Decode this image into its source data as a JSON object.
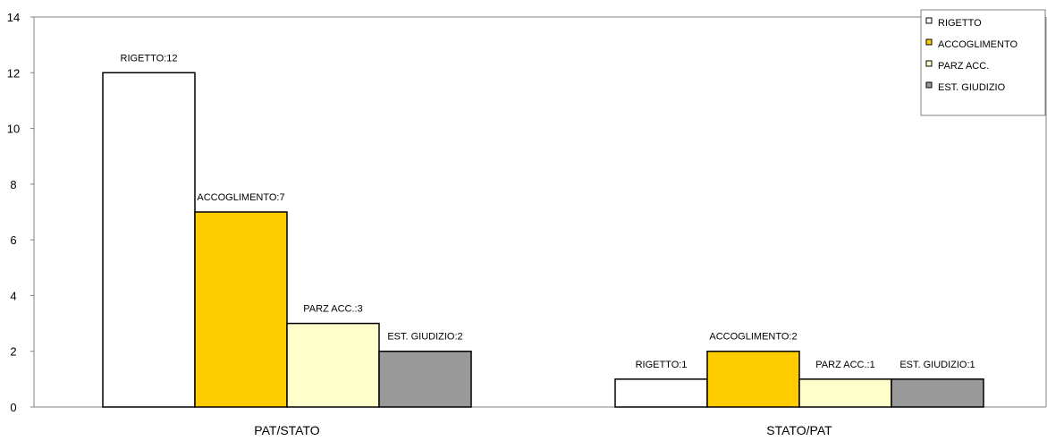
{
  "chart_data": {
    "type": "bar",
    "categories": [
      "PAT/STATO",
      "STATO/PAT"
    ],
    "series": [
      {
        "name": "RIGETTO",
        "values": [
          12,
          1
        ],
        "color": "#ffffff",
        "labels": [
          "RIGETTO:12",
          "RIGETTO:1"
        ]
      },
      {
        "name": "ACCOGLIMENTO",
        "values": [
          7,
          2
        ],
        "color": "#ffcc00",
        "labels": [
          "ACCOGLIMENTO:7",
          "ACCOGLIMENTO:2"
        ]
      },
      {
        "name": "PARZ ACC.",
        "values": [
          3,
          1
        ],
        "color": "#ffffcc",
        "labels": [
          "PARZ ACC.:3",
          "PARZ ACC.:1"
        ]
      },
      {
        "name": "EST. GIUDIZIO",
        "values": [
          2,
          1
        ],
        "color": "#999999",
        "labels": [
          "EST. GIUDIZIO:2",
          "EST. GIUDIZIO:1"
        ]
      }
    ],
    "yticks": [
      "0",
      "2",
      "4",
      "6",
      "8",
      "10",
      "12",
      "14"
    ],
    "ylim": [
      0,
      14
    ],
    "grid": false,
    "legend": "top-right"
  }
}
